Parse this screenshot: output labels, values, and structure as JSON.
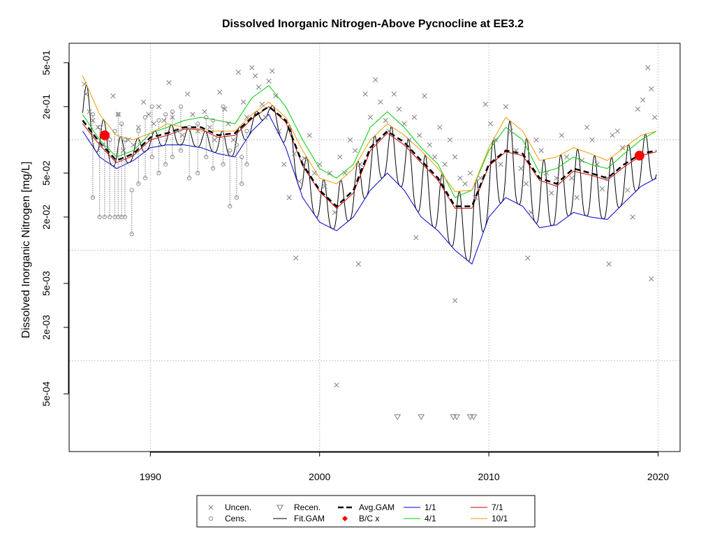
{
  "chart_data": {
    "type": "scatter",
    "title": "Dissolved Inorganic Nitrogen-Above Pycnocline at EE3.2",
    "ylabel": "Dissolved Inorganic Nitrogen [mg/L]",
    "xlabel": "",
    "y_scale": "log",
    "xlim": [
      1985.2,
      2021.3
    ],
    "ylim": [
      0.00015,
      0.75
    ],
    "grid": true,
    "x_ticks": [
      1990,
      2000,
      2010,
      2020
    ],
    "y_ticks": [
      {
        "value": 0.5,
        "label": "5e-01"
      },
      {
        "value": 0.2,
        "label": "2e-01"
      },
      {
        "value": 0.05,
        "label": "5e-02"
      },
      {
        "value": 0.02,
        "label": "2e-02"
      },
      {
        "value": 0.005,
        "label": "5e-03"
      },
      {
        "value": 0.002,
        "label": "2e-03"
      },
      {
        "value": 0.0005,
        "label": "5e-04"
      }
    ],
    "x_gridlines": [
      1990,
      2000,
      2010,
      2020
    ],
    "y_gridlines": [
      0.1,
      0.01,
      0.001
    ],
    "colors": {
      "uncensored": "#7f7f7f",
      "censored": "#8c8c8c",
      "recensored": "#7f7f7f",
      "avg_gam": "#000000",
      "fit_gam": "#000000",
      "bc_point": "#ff0000",
      "doy_1_1": "#0000cd",
      "doy_4_1": "#00cd00",
      "doy_7_1": "#cd0000",
      "doy_10_1": "#e69f00",
      "grid": "#c8c8c8"
    },
    "legend": {
      "placement": "bottom",
      "entries": [
        {
          "label": "Uncen.",
          "symbol": "x"
        },
        {
          "label": "Cens.",
          "symbol": "circle"
        },
        {
          "label": "Recen.",
          "symbol": "triangle-down"
        },
        {
          "label": "Fit.GAM",
          "symbol": "line"
        },
        {
          "label": "Avg.GAM",
          "symbol": "dashed-line"
        },
        {
          "label": "B/C x",
          "symbol": "red-diamond"
        },
        {
          "label": "1/1",
          "symbol": "blue-line"
        },
        {
          "label": "4/1",
          "symbol": "green-line"
        },
        {
          "label": "7/1",
          "symbol": "red-line"
        },
        {
          "label": "10/1",
          "symbol": "orange-line"
        }
      ]
    },
    "series": [
      {
        "name": "Avg.GAM",
        "x": [
          1986.0,
          1987.0,
          1988.0,
          1989.0,
          1990.0,
          1991.0,
          1992.0,
          1993.0,
          1994.0,
          1995.0,
          1996.0,
          1997.0,
          1998.0,
          1999.0,
          2000.0,
          2001.0,
          2002.0,
          2003.0,
          2004.0,
          2005.0,
          2006.0,
          2007.0,
          2008.0,
          2009.0,
          2010.0,
          2011.0,
          2012.0,
          2013.0,
          2014.0,
          2015.0,
          2016.0,
          2017.0,
          2018.0,
          2019.0,
          2019.9
        ],
        "y": [
          0.15,
          0.095,
          0.065,
          0.075,
          0.105,
          0.115,
          0.13,
          0.13,
          0.11,
          0.115,
          0.16,
          0.2,
          0.15,
          0.06,
          0.035,
          0.025,
          0.035,
          0.085,
          0.12,
          0.095,
          0.065,
          0.045,
          0.025,
          0.025,
          0.06,
          0.08,
          0.075,
          0.045,
          0.04,
          0.055,
          0.05,
          0.045,
          0.06,
          0.075,
          0.08
        ]
      },
      {
        "name": "1/1",
        "x": [
          1986.0,
          1987.0,
          1988.0,
          1989.0,
          1990.0,
          1991.0,
          1992.0,
          1993.0,
          1994.0,
          1995.0,
          1996.0,
          1997.0,
          1998.0,
          1999.0,
          2000.0,
          2001.0,
          2002.0,
          2003.0,
          2004.0,
          2005.0,
          2006.0,
          2007.0,
          2008.0,
          2009.0,
          2010.0,
          2011.0,
          2012.0,
          2013.0,
          2014.0,
          2015.0,
          2016.0,
          2017.0,
          2018.0,
          2019.0,
          2019.9
        ],
        "y": [
          0.12,
          0.07,
          0.055,
          0.065,
          0.085,
          0.09,
          0.09,
          0.085,
          0.075,
          0.07,
          0.12,
          0.17,
          0.085,
          0.03,
          0.018,
          0.015,
          0.02,
          0.035,
          0.05,
          0.035,
          0.02,
          0.015,
          0.01,
          0.0075,
          0.02,
          0.03,
          0.025,
          0.016,
          0.017,
          0.022,
          0.02,
          0.019,
          0.027,
          0.038,
          0.045
        ]
      },
      {
        "name": "4/1",
        "x": [
          1986.0,
          1987.0,
          1988.0,
          1989.0,
          1990.0,
          1991.0,
          1992.0,
          1993.0,
          1994.0,
          1995.0,
          1996.0,
          1997.0,
          1998.0,
          1999.0,
          2000.0,
          2001.0,
          2002.0,
          2003.0,
          2004.0,
          2005.0,
          2006.0,
          2007.0,
          2008.0,
          2009.0,
          2010.0,
          2011.0,
          2012.0,
          2013.0,
          2014.0,
          2015.0,
          2016.0,
          2017.0,
          2018.0,
          2019.0,
          2019.9
        ],
        "y": [
          0.17,
          0.1,
          0.07,
          0.08,
          0.115,
          0.13,
          0.15,
          0.16,
          0.15,
          0.14,
          0.24,
          0.31,
          0.2,
          0.1,
          0.055,
          0.045,
          0.06,
          0.13,
          0.18,
          0.13,
          0.085,
          0.06,
          0.03,
          0.035,
          0.08,
          0.13,
          0.1,
          0.05,
          0.055,
          0.07,
          0.06,
          0.055,
          0.075,
          0.1,
          0.12
        ]
      },
      {
        "name": "7/1",
        "x": [
          1986.0,
          1987.0,
          1988.0,
          1989.0,
          1990.0,
          1991.0,
          1992.0,
          1993.0,
          1994.0,
          1995.0,
          1996.0,
          1997.0,
          1998.0,
          1999.0,
          2000.0,
          2001.0,
          2002.0,
          2003.0,
          2004.0,
          2005.0,
          2006.0,
          2007.0,
          2008.0,
          2009.0,
          2010.0,
          2011.0,
          2012.0,
          2013.0,
          2014.0,
          2015.0,
          2016.0,
          2017.0,
          2018.0,
          2019.0,
          2019.9
        ],
        "y": [
          0.14,
          0.09,
          0.062,
          0.072,
          0.1,
          0.11,
          0.125,
          0.125,
          0.105,
          0.11,
          0.155,
          0.2,
          0.145,
          0.058,
          0.034,
          0.024,
          0.033,
          0.08,
          0.115,
          0.09,
          0.062,
          0.043,
          0.024,
          0.024,
          0.058,
          0.078,
          0.072,
          0.043,
          0.038,
          0.052,
          0.048,
          0.043,
          0.057,
          0.072,
          0.078
        ]
      },
      {
        "name": "10/1",
        "x": [
          1986.0,
          1987.0,
          1988.0,
          1989.0,
          1990.0,
          1991.0,
          1992.0,
          1993.0,
          1994.0,
          1995.0,
          1996.0,
          1997.0,
          1998.0,
          1999.0,
          2000.0,
          2001.0,
          2002.0,
          2003.0,
          2004.0,
          2005.0,
          2006.0,
          2007.0,
          2008.0,
          2009.0,
          2010.0,
          2011.0,
          2012.0,
          2013.0,
          2014.0,
          2015.0,
          2016.0,
          2017.0,
          2018.0,
          2019.0,
          2019.9
        ],
        "y": [
          0.38,
          0.17,
          0.11,
          0.1,
          0.115,
          0.14,
          0.13,
          0.12,
          0.12,
          0.12,
          0.17,
          0.22,
          0.16,
          0.08,
          0.045,
          0.04,
          0.055,
          0.1,
          0.14,
          0.11,
          0.08,
          0.055,
          0.034,
          0.035,
          0.085,
          0.16,
          0.12,
          0.065,
          0.07,
          0.085,
          0.075,
          0.065,
          0.085,
          0.11,
          0.12
        ]
      }
    ],
    "fit_gam": {
      "name": "Fit.GAM",
      "note": "seasonal fitted curve oscillating between 1/1 and 10/1 envelopes each year",
      "x_start": 1986.0,
      "x_end": 2019.9
    },
    "bc_points": [
      {
        "x": 1987.3,
        "y": 0.11
      },
      {
        "x": 2018.9,
        "y": 0.072
      }
    ],
    "uncensored_points": {
      "x": [
        1986.1,
        1986.2,
        1986.4,
        1986.6,
        1986.9,
        1987.2,
        1987.5,
        1987.8,
        1988.1,
        1988.4,
        1988.7,
        1989.0,
        1989.3,
        1989.6,
        1989.9,
        1990.2,
        1990.5,
        1990.8,
        1991.1,
        1991.3,
        1991.6,
        1991.9,
        1992.2,
        1992.5,
        1992.8,
        1993.2,
        1993.5,
        1993.8,
        1994.1,
        1994.4,
        1994.6,
        1994.9,
        1995.2,
        1995.5,
        1995.7,
        1996.0,
        1996.2,
        1996.4,
        1996.6,
        1996.8,
        1997.0,
        1997.2,
        1997.4,
        1997.6,
        1997.9,
        1998.2,
        1998.5,
        1998.8,
        1999.1,
        1999.4,
        1999.7,
        2000.0,
        2000.3,
        2000.6,
        2000.9,
        2001.2,
        2001.5,
        2001.8,
        2002.1,
        2002.4,
        2002.7,
        2003.0,
        2003.3,
        2003.6,
        2003.9,
        2004.1,
        2004.4,
        2004.7,
        2005.0,
        2005.3,
        2005.6,
        2005.9,
        2006.2,
        2006.5,
        2006.8,
        2007.1,
        2007.4,
        2007.7,
        2008.0,
        2008.3,
        2008.6,
        2008.9,
        2009.2,
        2009.5,
        2009.8,
        2010.1,
        2010.4,
        2010.7,
        2011.0,
        2011.3,
        2011.6,
        2011.9,
        2012.2,
        2012.5,
        2012.8,
        2013.1,
        2013.4,
        2013.7,
        2014.0,
        2014.3,
        2014.6,
        2014.9,
        2015.2,
        2015.5,
        2015.8,
        2016.1,
        2016.4,
        2016.7,
        2017.0,
        2017.3,
        2017.6,
        2017.9,
        2018.2,
        2018.5,
        2018.8,
        2019.1,
        2019.4,
        2019.6,
        2019.8,
        2001.0,
        2008.0,
        1998.6,
        2002.3,
        2005.7,
        2012.3,
        2017.1,
        2019.6
      ],
      "y": [
        0.32,
        0.26,
        0.18,
        0.15,
        0.13,
        0.09,
        0.11,
        0.25,
        0.17,
        0.08,
        0.1,
        0.09,
        0.13,
        0.22,
        0.17,
        0.14,
        0.2,
        0.15,
        0.33,
        0.16,
        0.12,
        0.11,
        0.26,
        0.17,
        0.12,
        0.18,
        0.13,
        0.1,
        0.27,
        0.19,
        0.14,
        0.1,
        0.41,
        0.22,
        0.16,
        0.45,
        0.38,
        0.3,
        0.21,
        0.16,
        0.34,
        0.42,
        0.25,
        0.12,
        0.06,
        0.03,
        0.075,
        0.042,
        0.068,
        0.11,
        0.05,
        0.06,
        0.038,
        0.05,
        0.022,
        0.07,
        0.05,
        0.1,
        0.08,
        0.06,
        0.26,
        0.16,
        0.35,
        0.22,
        0.15,
        0.12,
        0.26,
        0.19,
        0.14,
        0.1,
        0.16,
        0.11,
        0.25,
        0.09,
        0.07,
        0.13,
        0.06,
        0.1,
        0.07,
        0.045,
        0.04,
        0.05,
        0.03,
        0.045,
        0.21,
        0.14,
        0.1,
        0.06,
        0.2,
        0.12,
        0.08,
        0.055,
        0.04,
        0.022,
        0.1,
        0.08,
        0.05,
        0.033,
        0.045,
        0.11,
        0.07,
        0.045,
        0.03,
        0.065,
        0.13,
        0.1,
        0.06,
        0.036,
        0.045,
        0.11,
        0.12,
        0.085,
        0.035,
        0.02,
        0.19,
        0.23,
        0.45,
        0.29,
        0.16,
        0.0006,
        0.0035,
        0.0085,
        0.0075,
        0.013,
        0.0085,
        0.0075,
        0.0055
      ]
    },
    "censored_points": {
      "x": [
        1986.6,
        1987.0,
        1987.3,
        1987.6,
        1987.9,
        1988.1,
        1988.3,
        1988.5,
        1988.9,
        1989.3,
        1989.7,
        1990.1,
        1990.5,
        1990.9,
        1991.3,
        1991.8,
        1992.3,
        1992.8,
        1993.3,
        1993.7,
        1994.3,
        1994.7,
        1995.1,
        1995.4,
        1995.7
      ],
      "y_low": [
        0.03,
        0.02,
        0.02,
        0.02,
        0.02,
        0.02,
        0.02,
        0.02,
        0.014,
        0.04,
        0.045,
        0.07,
        0.05,
        0.06,
        0.07,
        0.08,
        0.045,
        0.05,
        0.07,
        0.055,
        0.06,
        0.025,
        0.03,
        0.04,
        0.06
      ],
      "y_high": [
        0.17,
        0.13,
        0.11,
        0.1,
        0.12,
        0.17,
        0.14,
        0.1,
        0.035,
        0.12,
        0.16,
        0.2,
        0.15,
        0.17,
        0.18,
        0.2,
        0.13,
        0.14,
        0.16,
        0.15,
        0.2,
        0.08,
        0.09,
        0.07,
        0.12
      ]
    },
    "recensored_points": {
      "x": [
        2004.6,
        2006.0,
        2007.9,
        2008.1,
        2008.9,
        2009.1
      ],
      "y": [
        0.00031,
        0.00031,
        0.00031,
        0.00031,
        0.00031,
        0.00031
      ]
    }
  }
}
